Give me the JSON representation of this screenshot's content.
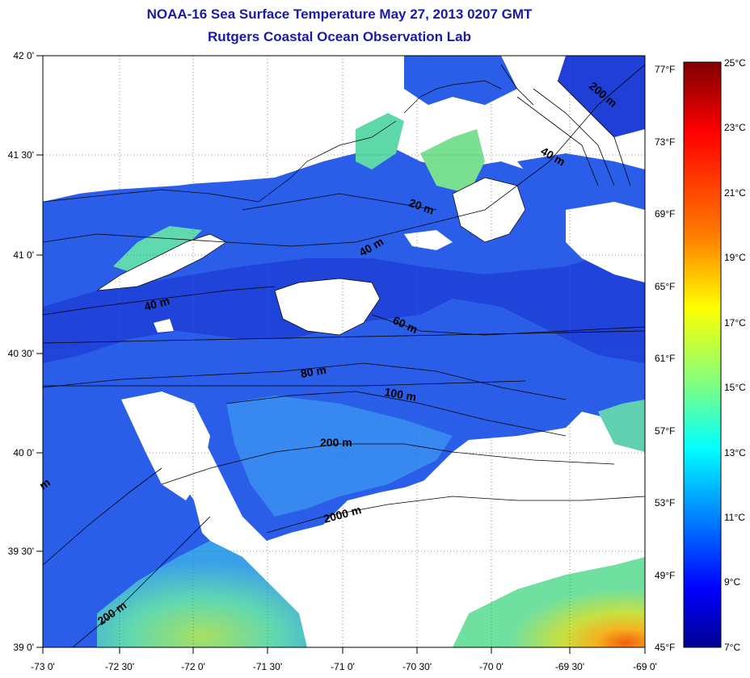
{
  "title": "NOAA-16 Sea Surface Temperature May 27, 2013 0207 GMT",
  "subtitle": "Rutgers Coastal Ocean Observation Lab",
  "axes": {
    "lat_labels": [
      "42 0'",
      "41 30'",
      "41 0'",
      "40 30'",
      "40 0'",
      "39 30'",
      "39 0'"
    ],
    "lon_labels": [
      "-73 0'",
      "-72 30'",
      "-72 0'",
      "-71 30'",
      "-71 0'",
      "-70 30'",
      "-70 0'",
      "-69 30'",
      "-69 0'"
    ],
    "fahrenheit_labels": [
      "77°F",
      "73°F",
      "69°F",
      "65°F",
      "61°F",
      "57°F",
      "53°F",
      "49°F",
      "45°F"
    ]
  },
  "colorbar": {
    "labels": [
      "25°C",
      "23°C",
      "21°C",
      "19°C",
      "17°C",
      "15°C",
      "13°C",
      "11°C",
      "9°C",
      "7°C"
    ],
    "stops": [
      "#7f0000",
      "#ff0000",
      "#ff8000",
      "#ffff00",
      "#80ff80",
      "#00ffff",
      "#0080ff",
      "#0000ff",
      "#00008f"
    ]
  },
  "contour_labels": [
    "200 m",
    "40 m",
    "20 m",
    "40 m",
    "40 m",
    "60 m",
    "80 m",
    "100 m",
    "200 m",
    "2000 m",
    "200 m",
    "m"
  ],
  "colors": {
    "title": "#1a1aa8",
    "deep_blue": "#1f3fd6",
    "mid_blue": "#2a5ee8",
    "land": "#ffffff",
    "warm": "#f4c020"
  }
}
